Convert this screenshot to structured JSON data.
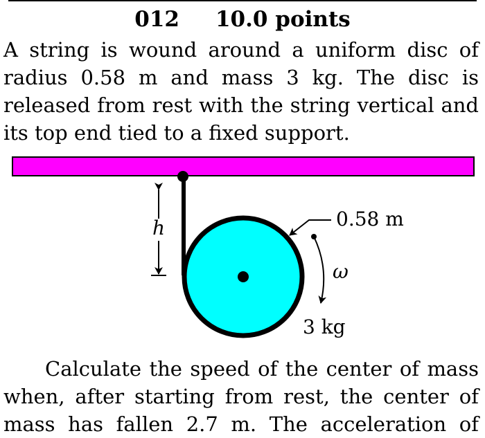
{
  "problem": {
    "number": "012",
    "points": "10.0 points"
  },
  "intro_lines": [
    "A string is wound around a uniform disc of",
    "radius 0.58 m and mass 3 kg.  The disc is",
    "released from rest with the string vertical and",
    "its top end tied to a fixed support."
  ],
  "figure": {
    "height_label": "h",
    "radius_label": "0.58 m",
    "omega_label": "ω",
    "mass_label": "3 kg",
    "colors": {
      "support": "#ff00ff",
      "disc": "#00ffff",
      "outline": "#000000"
    }
  },
  "question_lines": [
    "Calculate the speed of the center of mass",
    "when, after starting from rest, the center of",
    "mass has fallen 2.7 m.  The acceleration of"
  ]
}
